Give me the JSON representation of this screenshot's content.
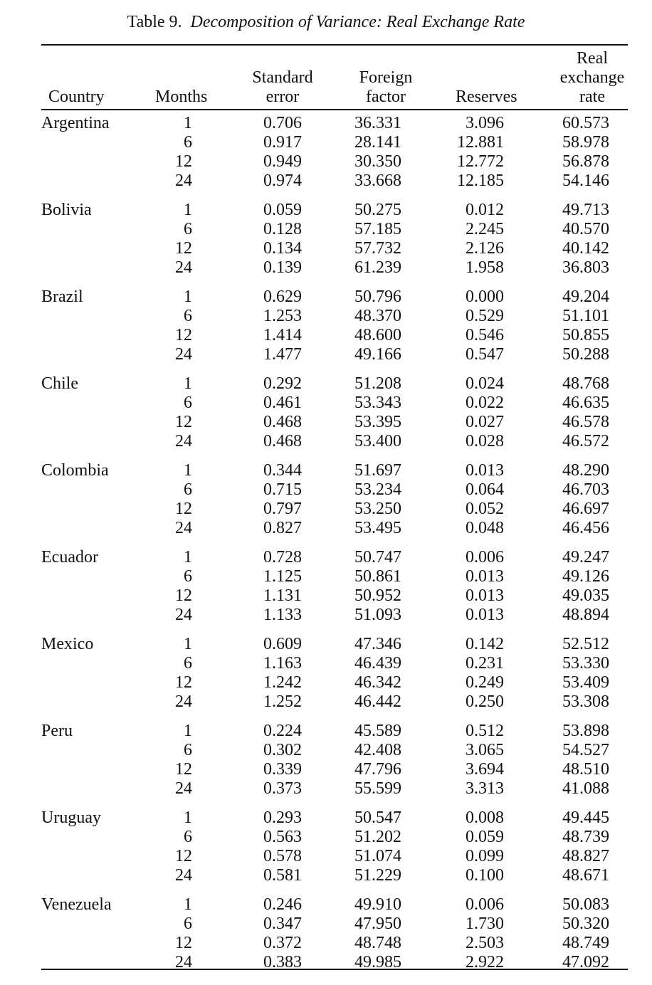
{
  "caption": {
    "label": "Table 9.",
    "title": "Decomposition of Variance: Real Exchange Rate"
  },
  "columns": {
    "country": [
      "Country"
    ],
    "months": [
      "Months"
    ],
    "std_error": [
      "Standard",
      "error"
    ],
    "foreign_factor": [
      "Foreign",
      "factor"
    ],
    "reserves": [
      "Reserves"
    ],
    "real_exchange_rate": [
      "Real",
      "exchange",
      "rate"
    ]
  },
  "groups": [
    {
      "country": "Argentina",
      "rows": [
        {
          "months": "1",
          "std_error": "0.706",
          "foreign_factor": "36.331",
          "reserves": "3.096",
          "rer": "60.573"
        },
        {
          "months": "6",
          "std_error": "0.917",
          "foreign_factor": "28.141",
          "reserves": "12.881",
          "rer": "58.978"
        },
        {
          "months": "12",
          "std_error": "0.949",
          "foreign_factor": "30.350",
          "reserves": "12.772",
          "rer": "56.878"
        },
        {
          "months": "24",
          "std_error": "0.974",
          "foreign_factor": "33.668",
          "reserves": "12.185",
          "rer": "54.146"
        }
      ]
    },
    {
      "country": "Bolivia",
      "rows": [
        {
          "months": "1",
          "std_error": "0.059",
          "foreign_factor": "50.275",
          "reserves": "0.012",
          "rer": "49.713"
        },
        {
          "months": "6",
          "std_error": "0.128",
          "foreign_factor": "57.185",
          "reserves": "2.245",
          "rer": "40.570"
        },
        {
          "months": "12",
          "std_error": "0.134",
          "foreign_factor": "57.732",
          "reserves": "2.126",
          "rer": "40.142"
        },
        {
          "months": "24",
          "std_error": "0.139",
          "foreign_factor": "61.239",
          "reserves": "1.958",
          "rer": "36.803"
        }
      ]
    },
    {
      "country": "Brazil",
      "rows": [
        {
          "months": "1",
          "std_error": "0.629",
          "foreign_factor": "50.796",
          "reserves": "0.000",
          "rer": "49.204"
        },
        {
          "months": "6",
          "std_error": "1.253",
          "foreign_factor": "48.370",
          "reserves": "0.529",
          "rer": "51.101"
        },
        {
          "months": "12",
          "std_error": "1.414",
          "foreign_factor": "48.600",
          "reserves": "0.546",
          "rer": "50.855"
        },
        {
          "months": "24",
          "std_error": "1.477",
          "foreign_factor": "49.166",
          "reserves": "0.547",
          "rer": "50.288"
        }
      ]
    },
    {
      "country": "Chile",
      "rows": [
        {
          "months": "1",
          "std_error": "0.292",
          "foreign_factor": "51.208",
          "reserves": "0.024",
          "rer": "48.768"
        },
        {
          "months": "6",
          "std_error": "0.461",
          "foreign_factor": "53.343",
          "reserves": "0.022",
          "rer": "46.635"
        },
        {
          "months": "12",
          "std_error": "0.468",
          "foreign_factor": "53.395",
          "reserves": "0.027",
          "rer": "46.578"
        },
        {
          "months": "24",
          "std_error": "0.468",
          "foreign_factor": "53.400",
          "reserves": "0.028",
          "rer": "46.572"
        }
      ]
    },
    {
      "country": "Colombia",
      "rows": [
        {
          "months": "1",
          "std_error": "0.344",
          "foreign_factor": "51.697",
          "reserves": "0.013",
          "rer": "48.290"
        },
        {
          "months": "6",
          "std_error": "0.715",
          "foreign_factor": "53.234",
          "reserves": "0.064",
          "rer": "46.703"
        },
        {
          "months": "12",
          "std_error": "0.797",
          "foreign_factor": "53.250",
          "reserves": "0.052",
          "rer": "46.697"
        },
        {
          "months": "24",
          "std_error": "0.827",
          "foreign_factor": "53.495",
          "reserves": "0.048",
          "rer": "46.456"
        }
      ]
    },
    {
      "country": "Ecuador",
      "rows": [
        {
          "months": "1",
          "std_error": "0.728",
          "foreign_factor": "50.747",
          "reserves": "0.006",
          "rer": "49.247"
        },
        {
          "months": "6",
          "std_error": "1.125",
          "foreign_factor": "50.861",
          "reserves": "0.013",
          "rer": "49.126"
        },
        {
          "months": "12",
          "std_error": "1.131",
          "foreign_factor": "50.952",
          "reserves": "0.013",
          "rer": "49.035"
        },
        {
          "months": "24",
          "std_error": "1.133",
          "foreign_factor": "51.093",
          "reserves": "0.013",
          "rer": "48.894"
        }
      ]
    },
    {
      "country": "Mexico",
      "rows": [
        {
          "months": "1",
          "std_error": "0.609",
          "foreign_factor": "47.346",
          "reserves": "0.142",
          "rer": "52.512"
        },
        {
          "months": "6",
          "std_error": "1.163",
          "foreign_factor": "46.439",
          "reserves": "0.231",
          "rer": "53.330"
        },
        {
          "months": "12",
          "std_error": "1.242",
          "foreign_factor": "46.342",
          "reserves": "0.249",
          "rer": "53.409"
        },
        {
          "months": "24",
          "std_error": "1.252",
          "foreign_factor": "46.442",
          "reserves": "0.250",
          "rer": "53.308"
        }
      ]
    },
    {
      "country": "Peru",
      "rows": [
        {
          "months": "1",
          "std_error": "0.224",
          "foreign_factor": "45.589",
          "reserves": "0.512",
          "rer": "53.898"
        },
        {
          "months": "6",
          "std_error": "0.302",
          "foreign_factor": "42.408",
          "reserves": "3.065",
          "rer": "54.527"
        },
        {
          "months": "12",
          "std_error": "0.339",
          "foreign_factor": "47.796",
          "reserves": "3.694",
          "rer": "48.510"
        },
        {
          "months": "24",
          "std_error": "0.373",
          "foreign_factor": "55.599",
          "reserves": "3.313",
          "rer": "41.088"
        }
      ]
    },
    {
      "country": "Uruguay",
      "rows": [
        {
          "months": "1",
          "std_error": "0.293",
          "foreign_factor": "50.547",
          "reserves": "0.008",
          "rer": "49.445"
        },
        {
          "months": "6",
          "std_error": "0.563",
          "foreign_factor": "51.202",
          "reserves": "0.059",
          "rer": "48.739"
        },
        {
          "months": "12",
          "std_error": "0.578",
          "foreign_factor": "51.074",
          "reserves": "0.099",
          "rer": "48.827"
        },
        {
          "months": "24",
          "std_error": "0.581",
          "foreign_factor": "51.229",
          "reserves": "0.100",
          "rer": "48.671"
        }
      ]
    },
    {
      "country": "Venezuela",
      "rows": [
        {
          "months": "1",
          "std_error": "0.246",
          "foreign_factor": "49.910",
          "reserves": "0.006",
          "rer": "50.083"
        },
        {
          "months": "6",
          "std_error": "0.347",
          "foreign_factor": "47.950",
          "reserves": "1.730",
          "rer": "50.320"
        },
        {
          "months": "12",
          "std_error": "0.372",
          "foreign_factor": "48.748",
          "reserves": "2.503",
          "rer": "48.749"
        },
        {
          "months": "24",
          "std_error": "0.383",
          "foreign_factor": "49.985",
          "reserves": "2.922",
          "rer": "47.092"
        }
      ]
    }
  ]
}
